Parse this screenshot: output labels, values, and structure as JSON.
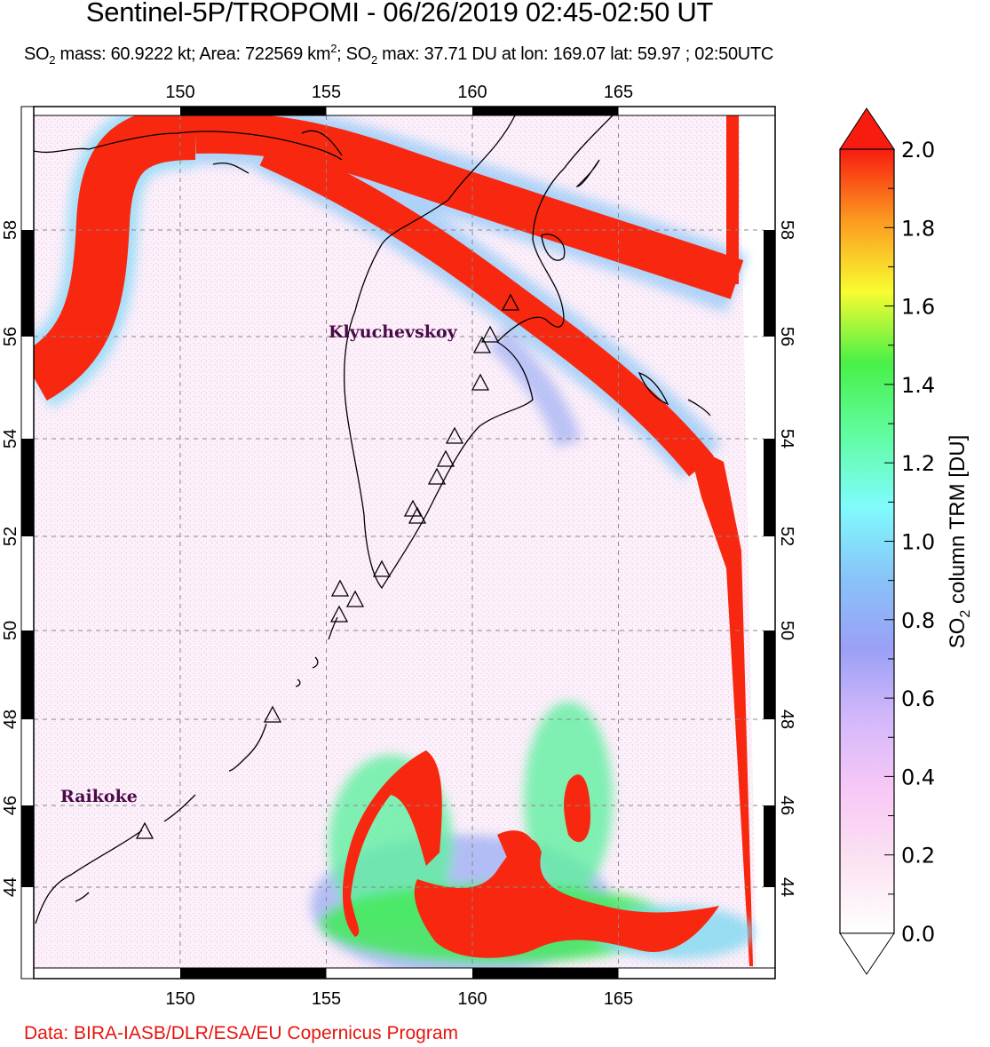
{
  "header": {
    "title": "Sentinel-5P/TROPOMI - 06/26/2019 02:45-02:50 UT",
    "subtitle": {
      "so2_a": "SO",
      "sub_a": "2",
      "mass": " mass: 60.9222 kt; Area: 722569 km",
      "sup": "2",
      "sep": "; SO",
      "sub_b": "2",
      "rest": " max: 37.71 DU at lon: 169.07 lat: 59.97 ; 02:50UTC"
    }
  },
  "map": {
    "lon_ticks": [
      "150",
      "155",
      "160",
      "165"
    ],
    "lat_ticks": [
      "58",
      "56",
      "54",
      "52",
      "50",
      "48",
      "46",
      "44"
    ],
    "volcanoes": [
      {
        "name": "Klyuchevskoy"
      },
      {
        "name": "Raikoke"
      }
    ]
  },
  "colorbar": {
    "label": "SO2 column TRM [DU]",
    "label_main": "SO",
    "label_sub": "2",
    "label_rest": " column TRM [DU]",
    "ticks": [
      "0.0",
      "0.2",
      "0.4",
      "0.6",
      "0.8",
      "1.0",
      "1.2",
      "1.4",
      "1.6",
      "1.8",
      "2.0"
    ],
    "min": 0.0,
    "max": 2.0,
    "colors": [
      "#ffffff",
      "#fbe3f2",
      "#f8c8f6",
      "#d4b8fa",
      "#9aa0f6",
      "#88c4f8",
      "#7ffcfc",
      "#60fca0",
      "#48f048",
      "#f8fc30",
      "#fc9a20",
      "#f81c10"
    ]
  },
  "footer": {
    "credit": "Data: BIRA-IASB/DLR/ESA/EU Copernicus Program"
  }
}
